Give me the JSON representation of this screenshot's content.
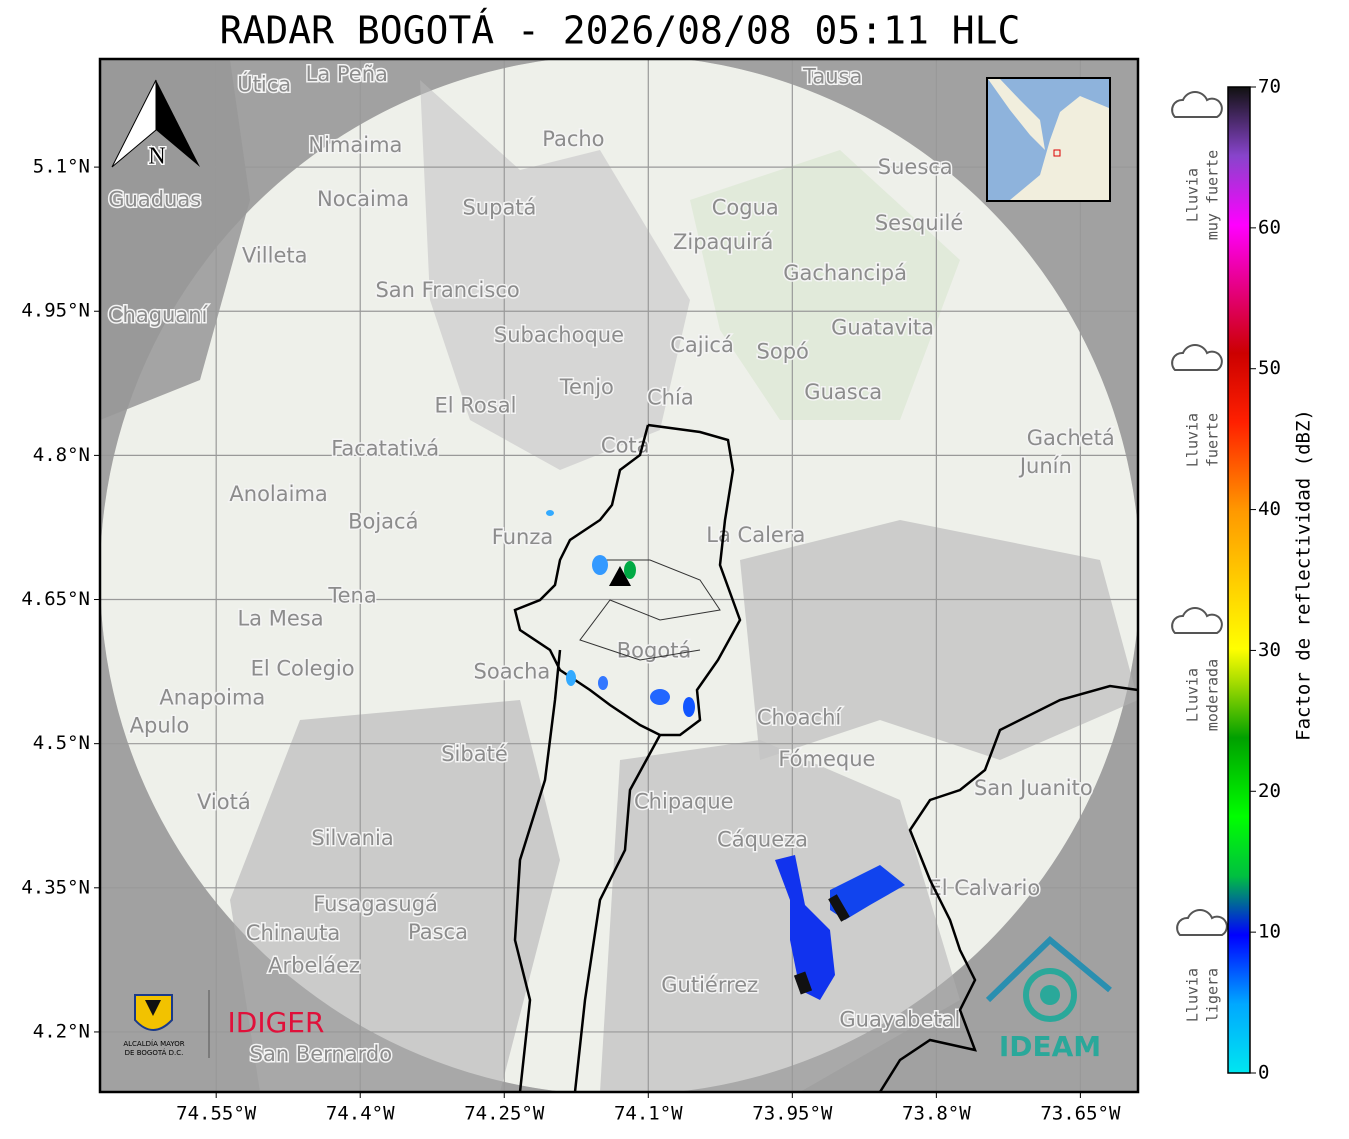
{
  "title": "RADAR BOGOTÁ - 2026/08/08 05:11 HLC",
  "map": {
    "xlim": [
      -74.671,
      -73.59
    ],
    "ylim": [
      4.1375,
      5.2125
    ],
    "xticks": [
      {
        "value": -74.55,
        "label": "74.55°W"
      },
      {
        "value": -74.4,
        "label": "74.4°W"
      },
      {
        "value": -74.25,
        "label": "74.25°W"
      },
      {
        "value": -74.1,
        "label": "74.1°W"
      },
      {
        "value": -73.95,
        "label": "73.95°W"
      },
      {
        "value": -73.8,
        "label": "73.8°W"
      },
      {
        "value": -73.65,
        "label": "73.65°W"
      }
    ],
    "yticks": [
      {
        "value": 5.1,
        "label": "5.1°N"
      },
      {
        "value": 4.95,
        "label": "4.95°N"
      },
      {
        "value": 4.8,
        "label": "4.8°N"
      },
      {
        "value": 4.65,
        "label": "4.65°N"
      },
      {
        "value": 4.5,
        "label": "4.5°N"
      },
      {
        "value": 4.35,
        "label": "4.35°N"
      },
      {
        "value": 4.2,
        "label": "4.2°N"
      }
    ],
    "north": "N",
    "places": [
      {
        "name": "La Peña",
        "lon": -74.414,
        "lat": 5.196
      },
      {
        "name": "Útica",
        "lon": -74.5,
        "lat": 5.185
      },
      {
        "name": "Tausa",
        "lon": -73.908,
        "lat": 5.193
      },
      {
        "name": "Nimaima",
        "lon": -74.405,
        "lat": 5.122
      },
      {
        "name": "Pacho",
        "lon": -74.178,
        "lat": 5.128
      },
      {
        "name": "Suesca",
        "lon": -73.822,
        "lat": 5.099
      },
      {
        "name": "Guaduas",
        "lon": -74.614,
        "lat": 5.065
      },
      {
        "name": "Nocaima",
        "lon": -74.397,
        "lat": 5.066
      },
      {
        "name": "Supatá",
        "lon": -74.255,
        "lat": 5.057
      },
      {
        "name": "Cogua",
        "lon": -73.999,
        "lat": 5.057
      },
      {
        "name": "Sesquilé",
        "lon": -73.818,
        "lat": 5.041
      },
      {
        "name": "Villeta",
        "lon": -74.489,
        "lat": 5.007
      },
      {
        "name": "Zipaquirá",
        "lon": -74.022,
        "lat": 5.021
      },
      {
        "name": "San Francisco",
        "lon": -74.309,
        "lat": 4.971
      },
      {
        "name": "Gachancipá",
        "lon": -73.895,
        "lat": 4.989
      },
      {
        "name": "Chaguaní",
        "lon": -74.611,
        "lat": 4.945
      },
      {
        "name": "Subachoque",
        "lon": -74.193,
        "lat": 4.924
      },
      {
        "name": "Guatavita",
        "lon": -73.856,
        "lat": 4.932
      },
      {
        "name": "Cajicá",
        "lon": -74.044,
        "lat": 4.914
      },
      {
        "name": "Sopó",
        "lon": -73.96,
        "lat": 4.907
      },
      {
        "name": "Tenjo",
        "lon": -74.164,
        "lat": 4.87
      },
      {
        "name": "El Rosal",
        "lon": -74.28,
        "lat": 4.851
      },
      {
        "name": "Chía",
        "lon": -74.077,
        "lat": 4.859
      },
      {
        "name": "Guasca",
        "lon": -73.897,
        "lat": 4.865
      },
      {
        "name": "Facatativá",
        "lon": -74.374,
        "lat": 4.806
      },
      {
        "name": "Cota",
        "lon": -74.124,
        "lat": 4.809
      },
      {
        "name": "Gachetá",
        "lon": -73.66,
        "lat": 4.817
      },
      {
        "name": "Junín",
        "lon": -73.686,
        "lat": 4.788
      },
      {
        "name": "Anolaima",
        "lon": -74.485,
        "lat": 4.759
      },
      {
        "name": "Bojacá",
        "lon": -74.376,
        "lat": 4.73
      },
      {
        "name": "Funza",
        "lon": -74.231,
        "lat": 4.714
      },
      {
        "name": "La Calera",
        "lon": -73.988,
        "lat": 4.716
      },
      {
        "name": "Tena",
        "lon": -74.408,
        "lat": 4.653
      },
      {
        "name": "La Mesa",
        "lon": -74.483,
        "lat": 4.629
      },
      {
        "name": "Bogotá",
        "lon": -74.094,
        "lat": 4.596
      },
      {
        "name": "El Colegio",
        "lon": -74.46,
        "lat": 4.577
      },
      {
        "name": "Soacha",
        "lon": -74.242,
        "lat": 4.574
      },
      {
        "name": "Anapoima",
        "lon": -74.554,
        "lat": 4.547
      },
      {
        "name": "Apulo",
        "lon": -74.609,
        "lat": 4.518
      },
      {
        "name": "Choachí",
        "lon": -73.943,
        "lat": 4.526
      },
      {
        "name": "Sibaté",
        "lon": -74.281,
        "lat": 4.488
      },
      {
        "name": "Fómeque",
        "lon": -73.914,
        "lat": 4.483
      },
      {
        "name": "San Juanito",
        "lon": -73.699,
        "lat": 4.453
      },
      {
        "name": "Chipaque",
        "lon": -74.063,
        "lat": 4.439
      },
      {
        "name": "Viotá",
        "lon": -74.542,
        "lat": 4.438
      },
      {
        "name": "Silvania",
        "lon": -74.408,
        "lat": 4.401
      },
      {
        "name": "Cáqueza",
        "lon": -73.981,
        "lat": 4.399
      },
      {
        "name": "El Calvario",
        "lon": -73.75,
        "lat": 4.349
      },
      {
        "name": "Fusagasugá",
        "lon": -74.384,
        "lat": 4.332
      },
      {
        "name": "Chinauta",
        "lon": -74.47,
        "lat": 4.302
      },
      {
        "name": "Pasca",
        "lon": -74.319,
        "lat": 4.303
      },
      {
        "name": "Arbeláez",
        "lon": -74.448,
        "lat": 4.268
      },
      {
        "name": "Gutiérrez",
        "lon": -74.036,
        "lat": 4.248
      },
      {
        "name": "Guayabetal",
        "lon": -73.838,
        "lat": 4.212
      },
      {
        "name": "San Bernardo",
        "lon": -74.441,
        "lat": 4.176
      }
    ]
  },
  "colorbar": {
    "label": "Factor de reflectividad (dBZ)",
    "lim": [
      0,
      70
    ],
    "ticks": [
      0,
      10,
      20,
      30,
      40,
      50,
      60,
      70
    ]
  },
  "legend": [
    [
      "Lluvia",
      "muy fuerte"
    ],
    [
      "Lluvia",
      "fuerte"
    ],
    [
      "Lluvia",
      "moderada"
    ],
    [
      "Lluvia",
      "ligera"
    ]
  ],
  "logos": {
    "alcaldia": [
      "ALCALDÍA MAYOR",
      "DE BOGOTÁ D.C."
    ],
    "idiger": "IDIGER",
    "ideam": "IDEAM"
  }
}
